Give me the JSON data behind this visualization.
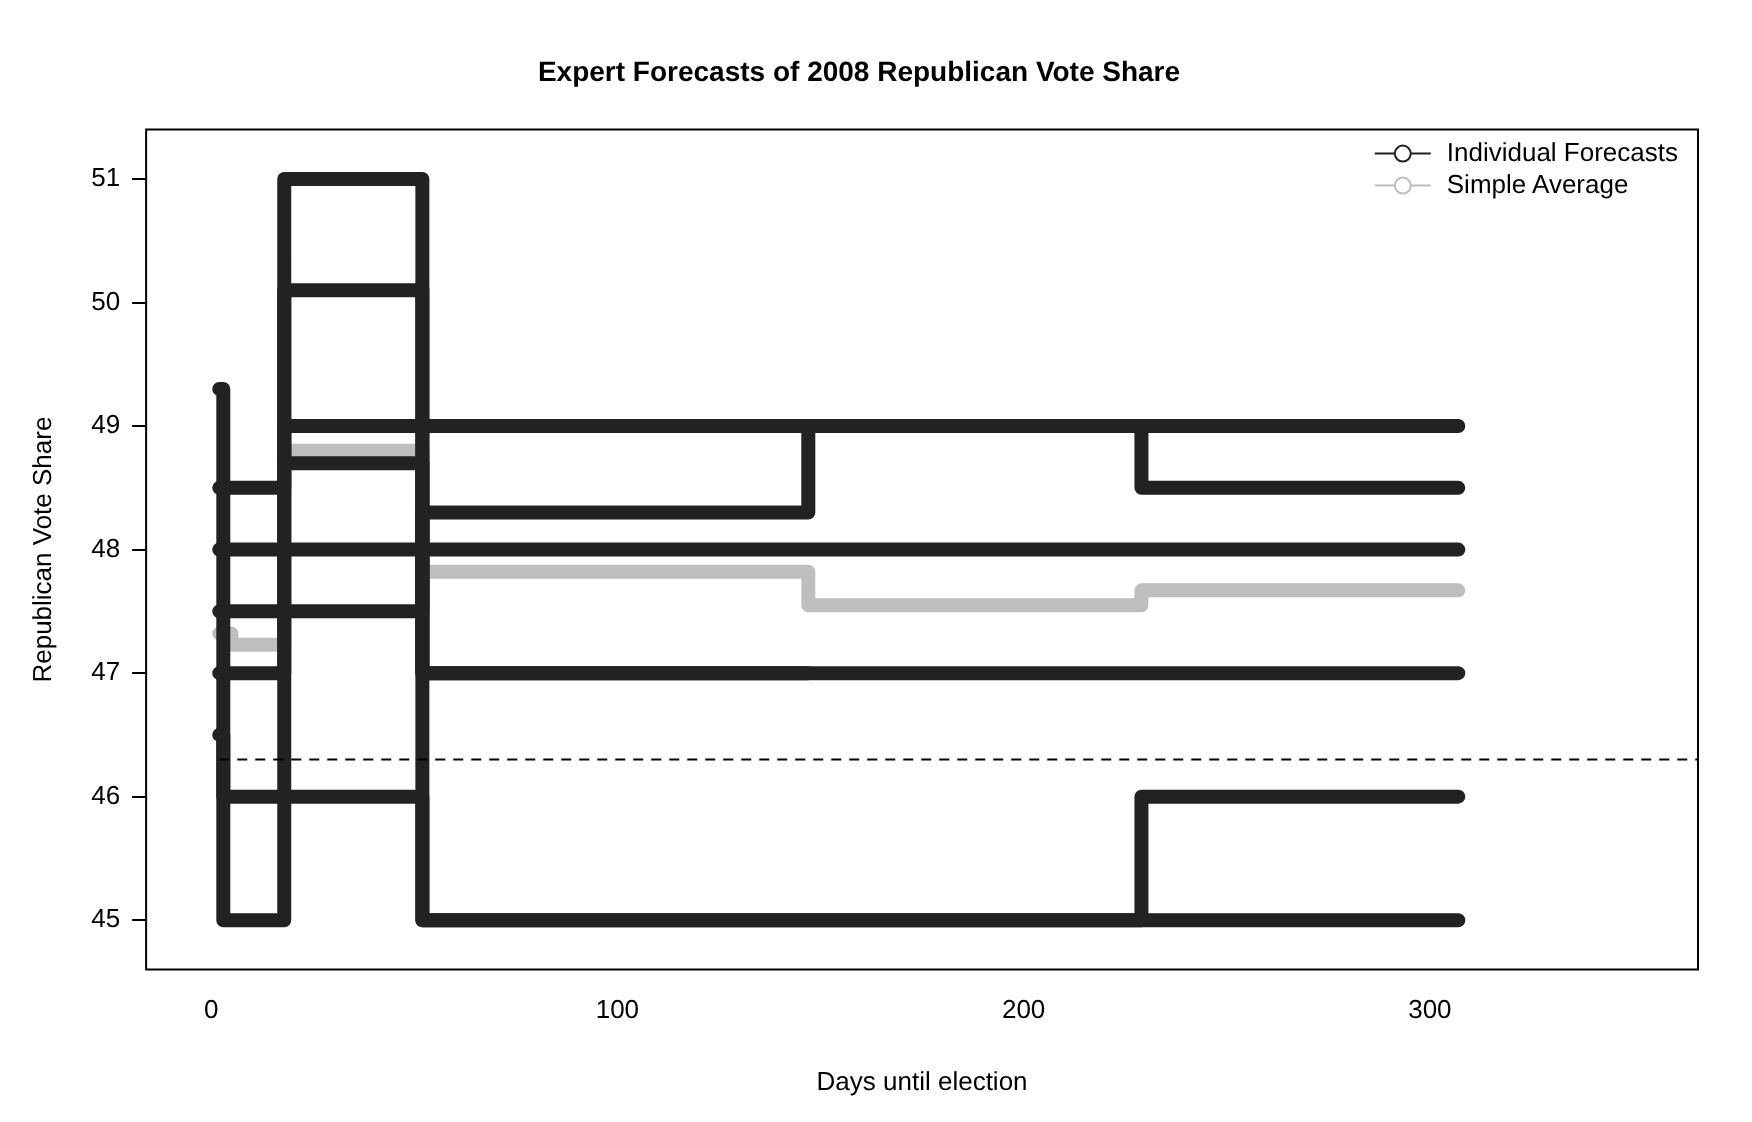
{
  "chart_data": {
    "type": "step",
    "title": "Expert Forecasts of 2008 Republican Vote Share",
    "xlabel": "Days until election",
    "ylabel": "Republican Vote Share",
    "xlim": [
      -16,
      366
    ],
    "ylim": [
      44.6,
      51.4
    ],
    "xticks": [
      0,
      100,
      200,
      300
    ],
    "yticks": [
      45,
      46,
      47,
      48,
      49,
      50,
      51
    ],
    "grid": false,
    "legend": "top right",
    "series": [
      {
        "name": "Individual Forecasts",
        "color": "#222222",
        "x": [
          2,
          3,
          18,
          52,
          307
        ],
        "values": [
          49.3,
          45,
          51,
          45,
          45
        ]
      },
      {
        "color": "#222222",
        "x": [
          2,
          18,
          52,
          307
        ],
        "values": [
          48.5,
          50.1,
          47,
          47
        ]
      },
      {
        "color": "#222222",
        "x": [
          2,
          18,
          52,
          307
        ],
        "values": [
          48,
          48,
          48,
          48
        ]
      },
      {
        "color": "#222222",
        "x": [
          2,
          52,
          147,
          307
        ],
        "values": [
          47.5,
          48.3,
          49,
          49
        ]
      },
      {
        "color": "#222222",
        "x": [
          2,
          18,
          229,
          307
        ],
        "values": [
          47,
          49,
          48.5,
          48.5
        ]
      },
      {
        "color": "#222222",
        "x": [
          2,
          3,
          52,
          229,
          307
        ],
        "values": [
          46.5,
          46,
          45,
          46,
          46
        ]
      },
      {
        "color": "#222222",
        "x": [
          18,
          52,
          147
        ],
        "values": [
          48.7,
          47,
          47
        ]
      },
      {
        "name": "Simple Average",
        "color": "#bebebe",
        "x": [
          2,
          5,
          18,
          52,
          147,
          229,
          307
        ],
        "values": [
          47.32,
          47.23,
          48.8,
          47.82,
          47.55,
          47.67,
          47.67
        ]
      }
    ],
    "ref_lines": [
      {
        "axis": "y",
        "value": 46.3,
        "color": "#000000",
        "line_style": "dashed"
      }
    ]
  }
}
